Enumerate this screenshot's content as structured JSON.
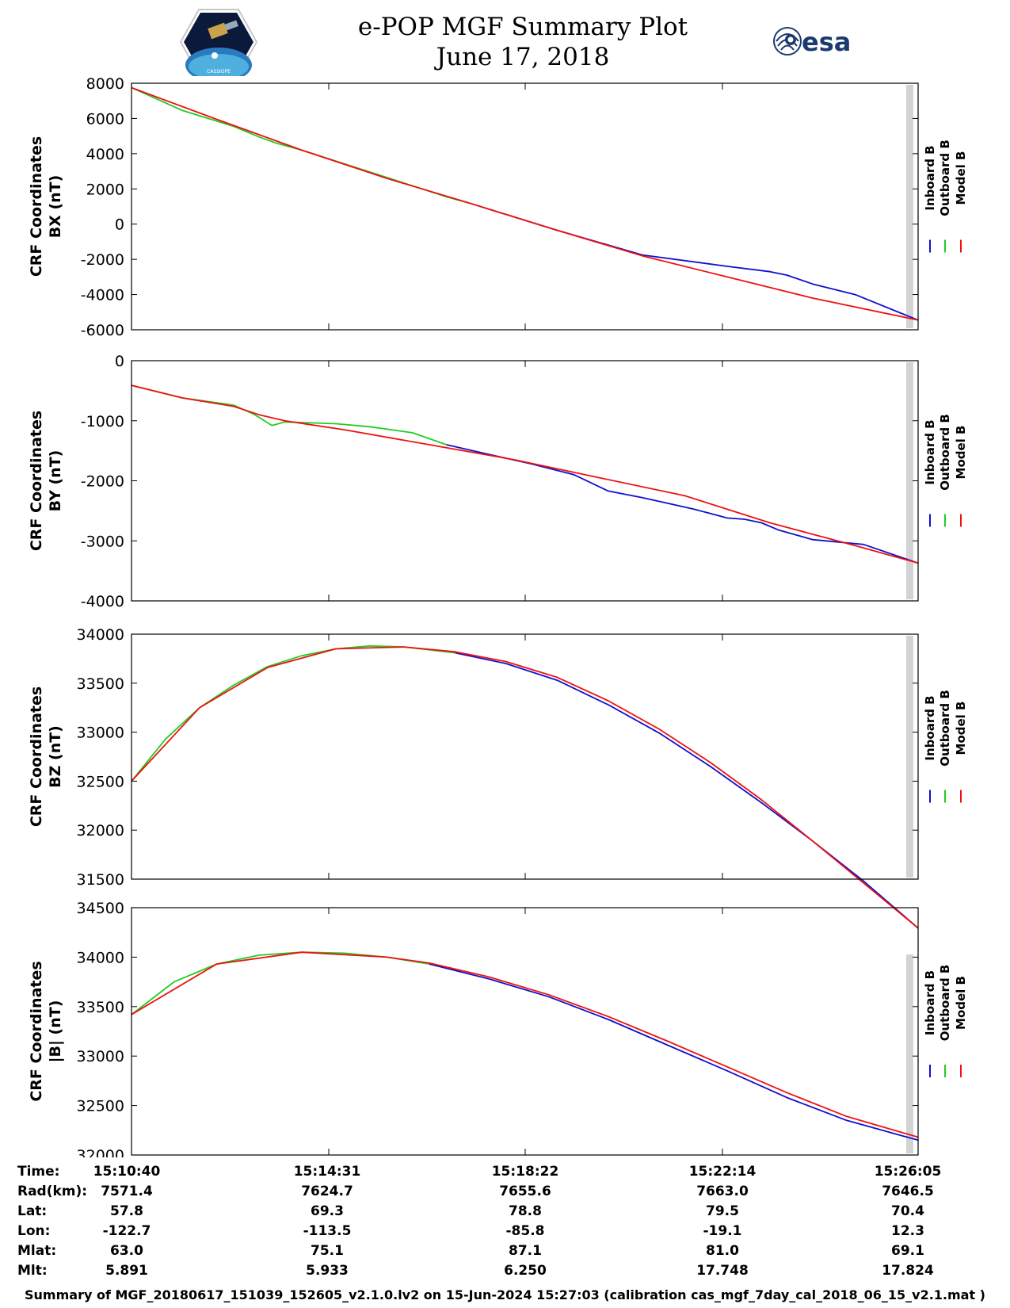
{
  "header": {
    "title_line1": "e-POP MGF Summary Plot",
    "title_line2": "June 17, 2018",
    "left_logo_text": "CASSIOPE",
    "right_logo_text": "esa"
  },
  "colors": {
    "inboard": "#1010cc",
    "outboard": "#22cc22",
    "model": "#ee1111",
    "gap_band": "#d3d3d3"
  },
  "chart_data": [
    {
      "type": "line",
      "ylabel_line1": "CRF Coordinates",
      "ylabel_line2": "BX (nT)",
      "ylim": [
        -6000,
        8000
      ],
      "yticks": [
        "8000",
        "6000",
        "4000",
        "2000",
        "0",
        "-2000",
        "-4000",
        "-6000"
      ],
      "ytick_values": [
        8000,
        6000,
        4000,
        2000,
        0,
        -2000,
        -4000,
        -6000
      ],
      "xlim_seconds": [
        0,
        924
      ],
      "legend": [
        "Inboard B",
        "Outboard B",
        "Model B"
      ],
      "series": [
        {
          "name": "Outboard B",
          "x": [
            0,
            60,
            120,
            150,
            170,
            200,
            290,
            370,
            400
          ],
          "y": [
            7750,
            6450,
            5550,
            4950,
            4600,
            4200,
            2800,
            1550,
            1150
          ]
        },
        {
          "name": "Inboard B",
          "x": [
            400,
            500,
            600,
            700,
            750,
            770,
            800,
            850,
            924
          ],
          "y": [
            1150,
            -350,
            -1750,
            -2400,
            -2700,
            -2900,
            -3400,
            -4000,
            -5450
          ]
        },
        {
          "name": "Model B",
          "x": [
            0,
            100,
            200,
            300,
            400,
            500,
            600,
            700,
            800,
            924
          ],
          "y": [
            7750,
            5950,
            4200,
            2600,
            1150,
            -350,
            -1800,
            -3000,
            -4200,
            -5450
          ]
        }
      ]
    },
    {
      "type": "line",
      "ylabel_line1": "CRF Coordinates",
      "ylabel_line2": "BY (nT)",
      "ylim": [
        -4000,
        0
      ],
      "yticks": [
        "0",
        "-1000",
        "-2000",
        "-3000",
        "-4000"
      ],
      "ytick_values": [
        0,
        -1000,
        -2000,
        -3000,
        -4000
      ],
      "xlim_seconds": [
        0,
        924
      ],
      "legend": [
        "Inboard B",
        "Outboard B",
        "Model B"
      ],
      "series": [
        {
          "name": "Outboard B",
          "x": [
            0,
            60,
            120,
            145,
            165,
            180,
            200,
            240,
            280,
            330,
            370
          ],
          "y": [
            -410,
            -620,
            -740,
            -900,
            -1080,
            -1020,
            -1030,
            -1050,
            -1100,
            -1200,
            -1400
          ]
        },
        {
          "name": "Inboard B",
          "x": [
            370,
            420,
            470,
            520,
            560,
            600,
            660,
            700,
            720,
            740,
            760,
            800,
            860,
            924
          ],
          "y": [
            -1400,
            -1560,
            -1720,
            -1900,
            -2170,
            -2280,
            -2470,
            -2620,
            -2640,
            -2700,
            -2820,
            -2980,
            -3060,
            -3370
          ]
        },
        {
          "name": "Model B",
          "x": [
            0,
            60,
            120,
            150,
            180,
            250,
            350,
            450,
            550,
            650,
            750,
            850,
            924
          ],
          "y": [
            -410,
            -620,
            -760,
            -900,
            -1000,
            -1150,
            -1400,
            -1650,
            -1950,
            -2250,
            -2700,
            -3080,
            -3370
          ]
        }
      ]
    },
    {
      "type": "line",
      "ylabel_line1": "CRF Coordinates",
      "ylabel_line2": "BZ (nT)",
      "ylim": [
        31500,
        34000
      ],
      "yticks": [
        "34000",
        "33500",
        "33000",
        "32500",
        "32000",
        "31500"
      ],
      "ytick_values": [
        34000,
        33500,
        33000,
        32500,
        32000,
        31500
      ],
      "xlim_seconds": [
        0,
        924
      ],
      "legend": [
        "Inboard B",
        "Outboard B",
        "Model B"
      ],
      "series": [
        {
          "name": "Outboard B",
          "x": [
            0,
            40,
            80,
            120,
            160,
            200,
            240,
            280,
            320,
            360,
            380
          ],
          "y": [
            32500,
            32930,
            33250,
            33480,
            33670,
            33780,
            33850,
            33880,
            33870,
            33830,
            33810
          ]
        },
        {
          "name": "Inboard B",
          "x": [
            380,
            440,
            500,
            560,
            620,
            680,
            740,
            800,
            860,
            924
          ],
          "y": [
            33810,
            33700,
            33530,
            33280,
            32990,
            32650,
            32280,
            31890,
            31480,
            31000
          ]
        },
        {
          "name": "Model B",
          "x": [
            0,
            80,
            160,
            240,
            320,
            380,
            440,
            500,
            560,
            620,
            680,
            740,
            800,
            860,
            924
          ],
          "y": [
            32500,
            33250,
            33660,
            33850,
            33870,
            33820,
            33720,
            33560,
            33320,
            33030,
            32690,
            32310,
            31890,
            31460,
            31000
          ]
        }
      ]
    },
    {
      "type": "line",
      "ylabel_line1": "CRF Coordinates",
      "ylabel_line2": "|B| (nT)",
      "ylim": [
        32000,
        34500
      ],
      "yticks": [
        "34500",
        "34000",
        "33500",
        "33000",
        "32500",
        "32000"
      ],
      "ytick_values": [
        34500,
        34000,
        33500,
        33000,
        32500,
        32000
      ],
      "xlim_seconds": [
        0,
        924
      ],
      "legend": [
        "Inboard B",
        "Outboard B",
        "Model B"
      ],
      "series": [
        {
          "name": "Outboard B",
          "x": [
            0,
            50,
            100,
            150,
            200,
            250,
            300,
            350
          ],
          "y": [
            33420,
            33750,
            33930,
            34020,
            34050,
            34040,
            34000,
            33930
          ]
        },
        {
          "name": "Inboard B",
          "x": [
            350,
            420,
            490,
            560,
            630,
            700,
            770,
            840,
            924
          ],
          "y": [
            33930,
            33780,
            33600,
            33370,
            33110,
            32850,
            32580,
            32350,
            32150
          ]
        },
        {
          "name": "Model B",
          "x": [
            0,
            100,
            200,
            300,
            350,
            420,
            490,
            560,
            630,
            700,
            770,
            840,
            924
          ],
          "y": [
            33420,
            33930,
            34050,
            34000,
            33940,
            33800,
            33620,
            33400,
            33150,
            32890,
            32630,
            32390,
            32180
          ]
        }
      ]
    }
  ],
  "xaxis": {
    "tick_times": [
      "15:10:40",
      "15:14:31",
      "15:18:22",
      "15:22:14",
      "15:26:05"
    ]
  },
  "ephemeris": {
    "labels": [
      "Time:",
      "Rad(km):",
      "Lat:",
      "Lon:",
      "Mlat:",
      "Mlt:"
    ],
    "columns": [
      {
        "time": "15:10:40",
        "rad": "7571.4",
        "lat": "57.8",
        "lon": "-122.7",
        "mlat": "63.0",
        "mlt": "5.891"
      },
      {
        "time": "15:14:31",
        "rad": "7624.7",
        "lat": "69.3",
        "lon": "-113.5",
        "mlat": "75.1",
        "mlt": "5.933"
      },
      {
        "time": "15:18:22",
        "rad": "7655.6",
        "lat": "78.8",
        "lon": "-85.8",
        "mlat": "87.1",
        "mlt": "6.250"
      },
      {
        "time": "15:22:14",
        "rad": "7663.0",
        "lat": "79.5",
        "lon": "-19.1",
        "mlat": "81.0",
        "mlt": "17.748"
      },
      {
        "time": "15:26:05",
        "rad": "7646.5",
        "lat": "70.4",
        "lon": "12.3",
        "mlat": "69.1",
        "mlt": "17.824"
      }
    ]
  },
  "footer": {
    "text": "Summary of MGF_20180617_151039_152605_v2.1.0.lv2 on 15-Jun-2024 15:27:03 (calibration cas_mgf_7day_cal_2018_06_15_v2.1.mat )"
  }
}
